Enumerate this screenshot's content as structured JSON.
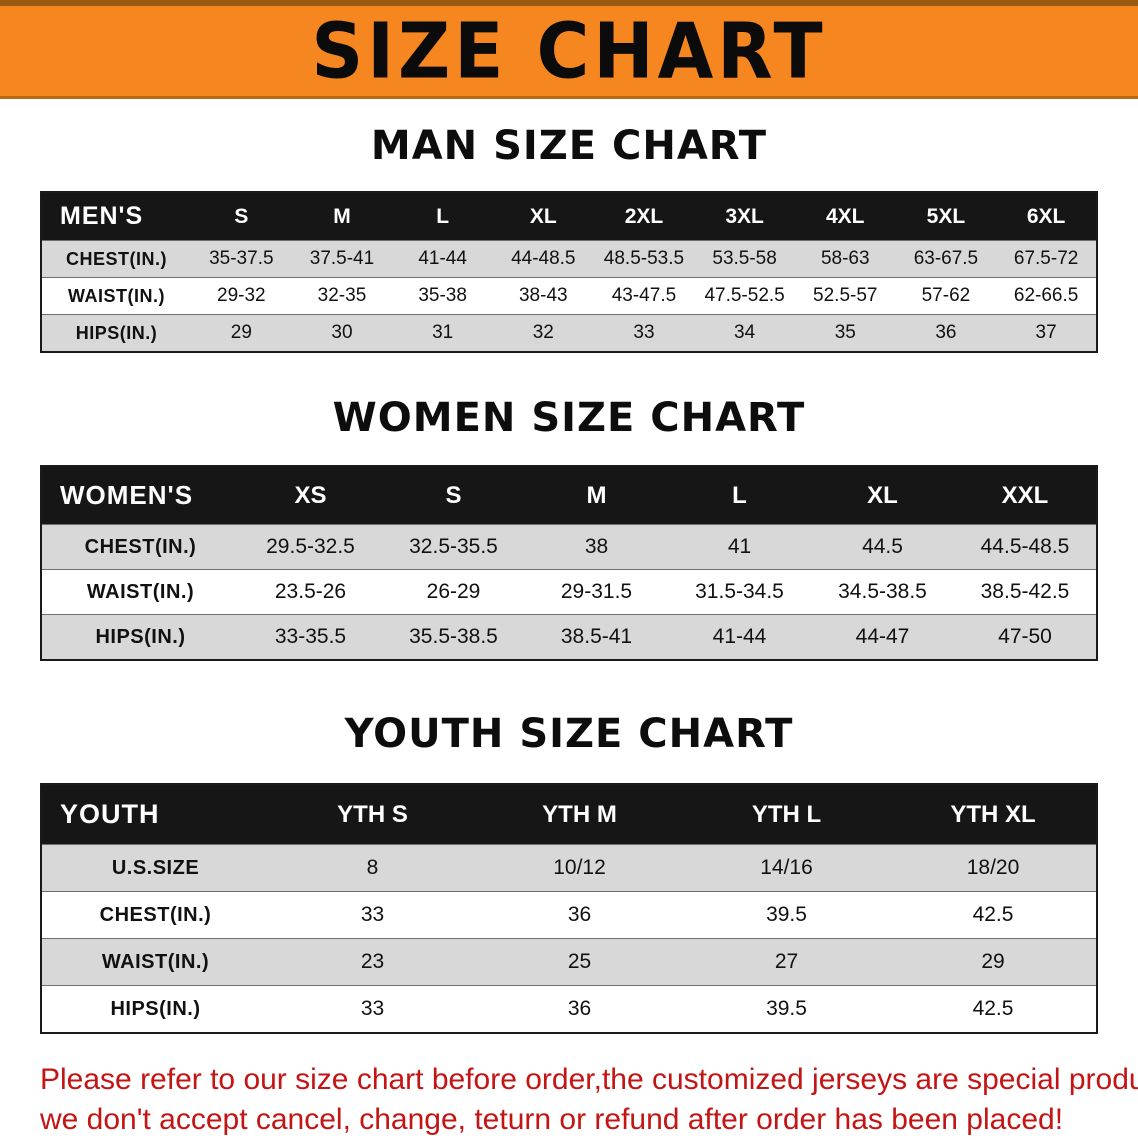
{
  "banner": {
    "title": "SIZE CHART"
  },
  "colors": {
    "banner_orange": "#f6861f",
    "header_black": "#161616",
    "stripe_gray": "#d8d8d8",
    "footer_red": "#c41414"
  },
  "sections": {
    "men": {
      "heading": "MAN SIZE CHART",
      "table": {
        "corner_label": "MEN'S",
        "columns": [
          "S",
          "M",
          "L",
          "XL",
          "2XL",
          "3XL",
          "4XL",
          "5XL",
          "6XL"
        ],
        "rows": [
          {
            "label": "CHEST(IN.)",
            "values": [
              "35-37.5",
              "37.5-41",
              "41-44",
              "44-48.5",
              "48.5-53.5",
              "53.5-58",
              "58-63",
              "63-67.5",
              "67.5-72"
            ]
          },
          {
            "label": "WAIST(IN.)",
            "values": [
              "29-32",
              "32-35",
              "35-38",
              "38-43",
              "43-47.5",
              "47.5-52.5",
              "52.5-57",
              "57-62",
              "62-66.5"
            ]
          },
          {
            "label": "HIPS(IN.)",
            "values": [
              "29",
              "30",
              "31",
              "32",
              "33",
              "34",
              "35",
              "36",
              "37"
            ]
          }
        ]
      }
    },
    "women": {
      "heading": "WOMEN SIZE CHART",
      "table": {
        "corner_label": "WOMEN'S",
        "columns": [
          "XS",
          "S",
          "M",
          "L",
          "XL",
          "XXL"
        ],
        "rows": [
          {
            "label": "CHEST(IN.)",
            "values": [
              "29.5-32.5",
              "32.5-35.5",
              "38",
              "41",
              "44.5",
              "44.5-48.5"
            ]
          },
          {
            "label": "WAIST(IN.)",
            "values": [
              "23.5-26",
              "26-29",
              "29-31.5",
              "31.5-34.5",
              "34.5-38.5",
              "38.5-42.5"
            ]
          },
          {
            "label": "HIPS(IN.)",
            "values": [
              "33-35.5",
              "35.5-38.5",
              "38.5-41",
              "41-44",
              "44-47",
              "47-50"
            ]
          }
        ]
      }
    },
    "youth": {
      "heading": "YOUTH SIZE CHART",
      "table": {
        "corner_label": "YOUTH",
        "columns": [
          "YTH S",
          "YTH M",
          "YTH L",
          "YTH XL"
        ],
        "rows": [
          {
            "label": "U.S.SIZE",
            "values": [
              "8",
              "10/12",
              "14/16",
              "18/20"
            ]
          },
          {
            "label": "CHEST(IN.)",
            "values": [
              "33",
              "36",
              "39.5",
              "42.5"
            ]
          },
          {
            "label": "WAIST(IN.)",
            "values": [
              "23",
              "25",
              "27",
              "29"
            ]
          },
          {
            "label": "HIPS(IN.)",
            "values": [
              "33",
              "36",
              "39.5",
              "42.5"
            ]
          }
        ]
      }
    }
  },
  "footer": {
    "lines": [
      "Please refer to our size chart before order,the customized jerseys are special products,",
      "we don't accept cancel, change, teturn or refund after order has been placed!"
    ]
  }
}
